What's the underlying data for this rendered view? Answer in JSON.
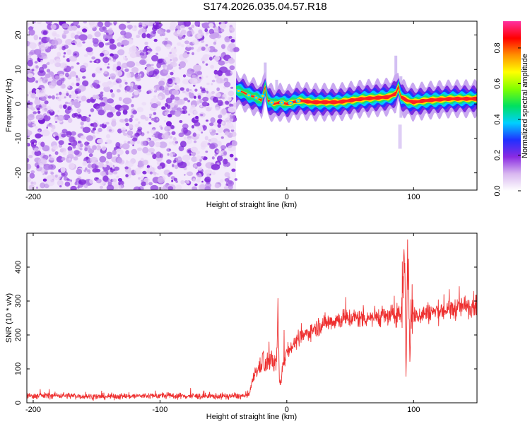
{
  "figure": {
    "title": "S174.2026.035.04.57.R18"
  },
  "chart_data": [
    {
      "type": "heatmap",
      "title": "S174.2026.035.04.57.R18",
      "xlabel": "Height of straight line (km)",
      "ylabel": "Frequency (Hz)",
      "xlim": [
        -205,
        150
      ],
      "ylim": [
        -25,
        24
      ],
      "xticks": [
        -200,
        -100,
        0,
        100
      ],
      "xtick_labels": [
        "-200",
        "-100",
        "0",
        "100"
      ],
      "yticks": [
        -20,
        -10,
        0,
        10,
        20
      ],
      "ytick_labels": [
        "-20",
        "-10",
        "0",
        "10",
        "20"
      ],
      "noise_region_x": [
        -205,
        -40
      ],
      "ridge": {
        "x": [
          -40,
          -35,
          -30,
          -25,
          -20,
          -17,
          -15,
          -10,
          -5,
          0,
          5,
          10,
          20,
          40,
          60,
          80,
          86,
          88,
          90,
          95,
          100,
          110,
          130,
          150
        ],
        "frequency": [
          4,
          3.5,
          2.5,
          2,
          1,
          5,
          1,
          0,
          0.5,
          0,
          0.5,
          1,
          0.5,
          0.5,
          1.5,
          2,
          3,
          5,
          2,
          1,
          0.5,
          1,
          1.5,
          1.5
        ]
      },
      "colorbar": {
        "label": "Normalized spectral amplitude",
        "range": [
          0,
          0.95
        ],
        "ticks": [
          0.0,
          0.2,
          0.4,
          0.6,
          0.8
        ],
        "tick_labels": [
          "0.0",
          "0.2",
          "0.4",
          "0.6",
          "0.8"
        ],
        "colors": [
          "#ffffff",
          "#d9b8f0",
          "#8a2be2",
          "#2030ff",
          "#00d0ff",
          "#00e060",
          "#80ff00",
          "#ffff00",
          "#ff9000",
          "#ff0000",
          "#ff30a0"
        ]
      }
    },
    {
      "type": "line",
      "xlabel": "Height of straight line (km)",
      "ylabel": "SNR (10 * v/v)",
      "xlim": [
        -205,
        150
      ],
      "ylim": [
        0,
        500
      ],
      "xticks": [
        -200,
        -100,
        0,
        100
      ],
      "xtick_labels": [
        "-200",
        "-100",
        "0",
        "100"
      ],
      "yticks": [
        0,
        100,
        200,
        300,
        400
      ],
      "ytick_labels": [
        "0",
        "100",
        "200",
        "300",
        "400"
      ],
      "series": [
        {
          "name": "SNR",
          "color": "#ee3030",
          "x": [
            -205,
            -180,
            -150,
            -120,
            -100,
            -80,
            -60,
            -40,
            -30,
            -28,
            -25,
            -20,
            -19,
            -18,
            -15,
            -12,
            -10,
            -8,
            -7,
            -6,
            -5,
            -3,
            0,
            5,
            10,
            20,
            30,
            40,
            50,
            60,
            70,
            80,
            85,
            90,
            93,
            94,
            95,
            96,
            97,
            98,
            100,
            110,
            120,
            130,
            140,
            150
          ],
          "y": [
            20,
            22,
            18,
            20,
            21,
            20,
            19,
            20,
            20,
            50,
            90,
            110,
            170,
            100,
            120,
            130,
            110,
            130,
            280,
            70,
            50,
            120,
            150,
            170,
            190,
            215,
            235,
            245,
            250,
            250,
            255,
            255,
            260,
            260,
            480,
            90,
            340,
            460,
            110,
            260,
            255,
            265,
            270,
            275,
            285,
            290
          ]
        }
      ]
    }
  ]
}
